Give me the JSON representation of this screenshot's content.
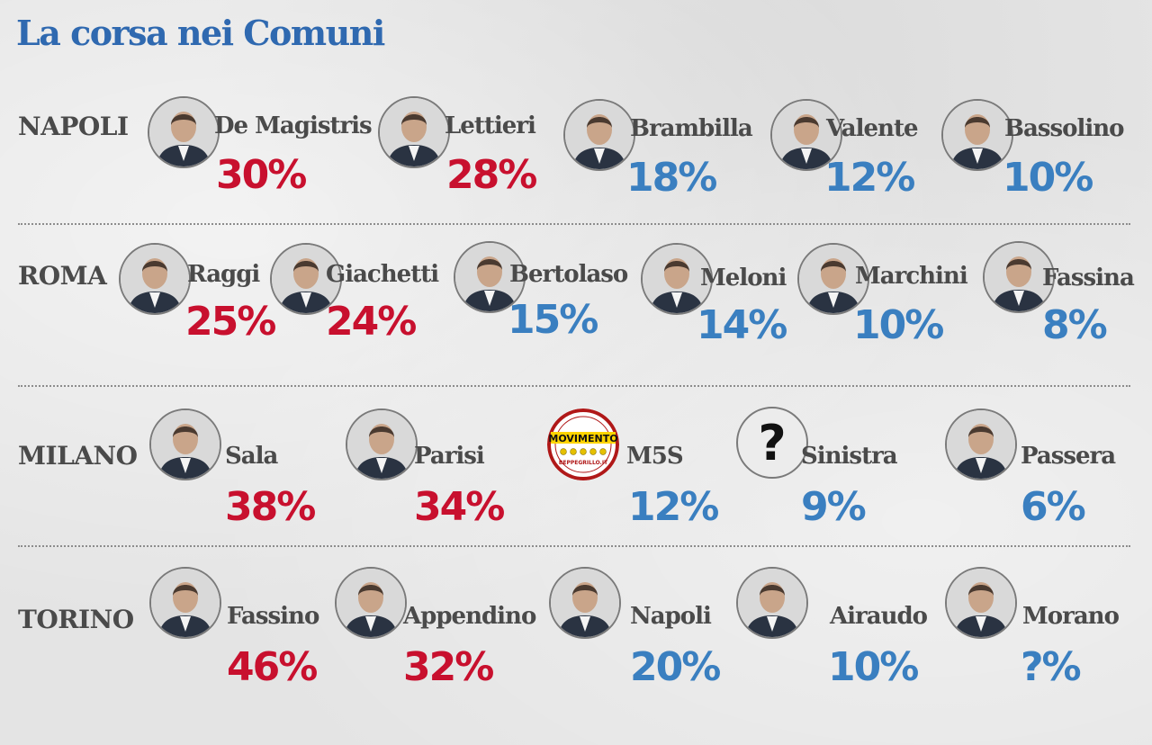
{
  "title": "La corsa nei Comuni",
  "colors": {
    "title": "#2f69b0",
    "leading": "#c8102e",
    "other": "#3a7fc0",
    "text": "#4a4a4a"
  },
  "cities": [
    {
      "name": "NAPOLI",
      "candidates": [
        {
          "name": "De Magistris",
          "pct": "30%",
          "status": "leading",
          "icon": "person-photo"
        },
        {
          "name": "Lettieri",
          "pct": "28%",
          "status": "leading",
          "icon": "person-photo"
        },
        {
          "name": "Brambilla",
          "pct": "18%",
          "status": "other",
          "icon": "person-photo"
        },
        {
          "name": "Valente",
          "pct": "12%",
          "status": "other",
          "icon": "person-photo"
        },
        {
          "name": "Bassolino",
          "pct": "10%",
          "status": "other",
          "icon": "person-photo"
        }
      ]
    },
    {
      "name": "ROMA",
      "candidates": [
        {
          "name": "Raggi",
          "pct": "25%",
          "status": "leading",
          "icon": "person-photo"
        },
        {
          "name": "Giachetti",
          "pct": "24%",
          "status": "leading",
          "icon": "person-photo"
        },
        {
          "name": "Bertolaso",
          "pct": "15%",
          "status": "other",
          "icon": "person-photo"
        },
        {
          "name": "Meloni",
          "pct": "14%",
          "status": "other",
          "icon": "person-photo"
        },
        {
          "name": "Marchini",
          "pct": "10%",
          "status": "other",
          "icon": "person-photo"
        },
        {
          "name": "Fassina",
          "pct": "8%",
          "status": "other",
          "icon": "person-photo"
        }
      ]
    },
    {
      "name": "MILANO",
      "candidates": [
        {
          "name": "Sala",
          "pct": "38%",
          "status": "leading",
          "icon": "person-photo"
        },
        {
          "name": "Parisi",
          "pct": "34%",
          "status": "leading",
          "icon": "person-photo"
        },
        {
          "name": "M5S",
          "pct": "12%",
          "status": "other",
          "icon": "movimento-logo",
          "logo_text": "MOVIMENTO",
          "logo_subtext": "BEPPEGRILLO.IT"
        },
        {
          "name": "Sinistra",
          "pct": "9%",
          "status": "other",
          "icon": "question-mark-icon",
          "symbol": "?"
        },
        {
          "name": "Passera",
          "pct": "6%",
          "status": "other",
          "icon": "person-photo"
        }
      ]
    },
    {
      "name": "TORINO",
      "candidates": [
        {
          "name": "Fassino",
          "pct": "46%",
          "status": "leading",
          "icon": "person-photo"
        },
        {
          "name": "Appendino",
          "pct": "32%",
          "status": "leading",
          "icon": "person-photo"
        },
        {
          "name": "Napoli",
          "pct": "20%",
          "status": "other",
          "icon": "person-photo"
        },
        {
          "name": "Airaudo",
          "pct": "10%",
          "status": "other",
          "icon": "person-photo"
        },
        {
          "name": "Morano",
          "pct": "?%",
          "status": "other",
          "icon": "person-photo"
        }
      ]
    }
  ]
}
